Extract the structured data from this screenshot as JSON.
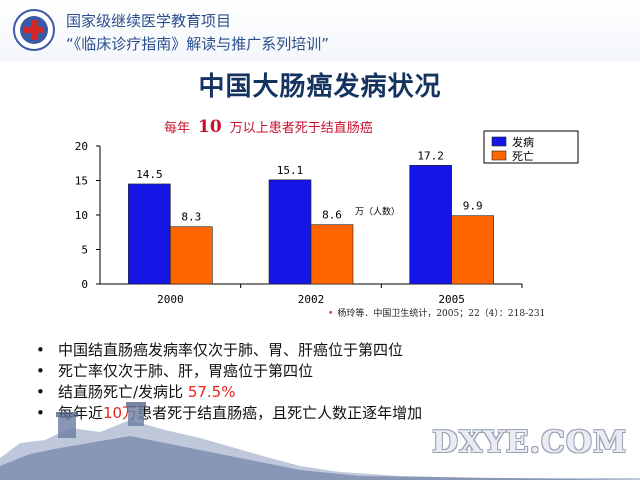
{
  "header": {
    "line1": "国家级继续医学教育项目",
    "line2": "“《临床诊疗指南》解读与推广系列培训”"
  },
  "title": "中国大肠癌发病状况",
  "subtitle": {
    "prefix": "每年",
    "number": "10",
    "suffix": "万以上患者死于结直肠癌"
  },
  "chart_data": {
    "type": "bar",
    "categories": [
      "2000",
      "2002",
      "2005"
    ],
    "series": [
      {
        "name": "发病",
        "values": [
          14.5,
          15.1,
          17.2
        ],
        "color": "#1515e6"
      },
      {
        "name": "死亡",
        "values": [
          8.3,
          8.6,
          9.9
        ],
        "color": "#ff6600"
      }
    ],
    "value_labels": [
      [
        "14.5",
        "15.1",
        "17.2"
      ],
      [
        "8.3",
        "8.6",
        "9.9"
      ]
    ],
    "ylim": [
      0,
      20
    ],
    "yticks": [
      "0",
      "5",
      "10",
      "15",
      "20"
    ],
    "annotation": "万（人数）",
    "legend": "top-right",
    "grid": false
  },
  "source": {
    "bullet": "•",
    "text": "杨玲等．中国卫生统计，2005；22（4）：218-231"
  },
  "bullets": [
    {
      "text": "中国结直肠癌发病率仅次于肺、胃、肝癌位于第四位"
    },
    {
      "text": "死亡率仅次于肺、肝，胃癌位于第四位"
    },
    {
      "text": "结直肠死亡/发病比 ",
      "highlight": "57.5%",
      "after": ""
    },
    {
      "text": "每年近",
      "highlight": "10万",
      "after": "患者死于结直肠癌，且死亡人数正逐年增加"
    }
  ],
  "watermark": "DXYE.COM"
}
